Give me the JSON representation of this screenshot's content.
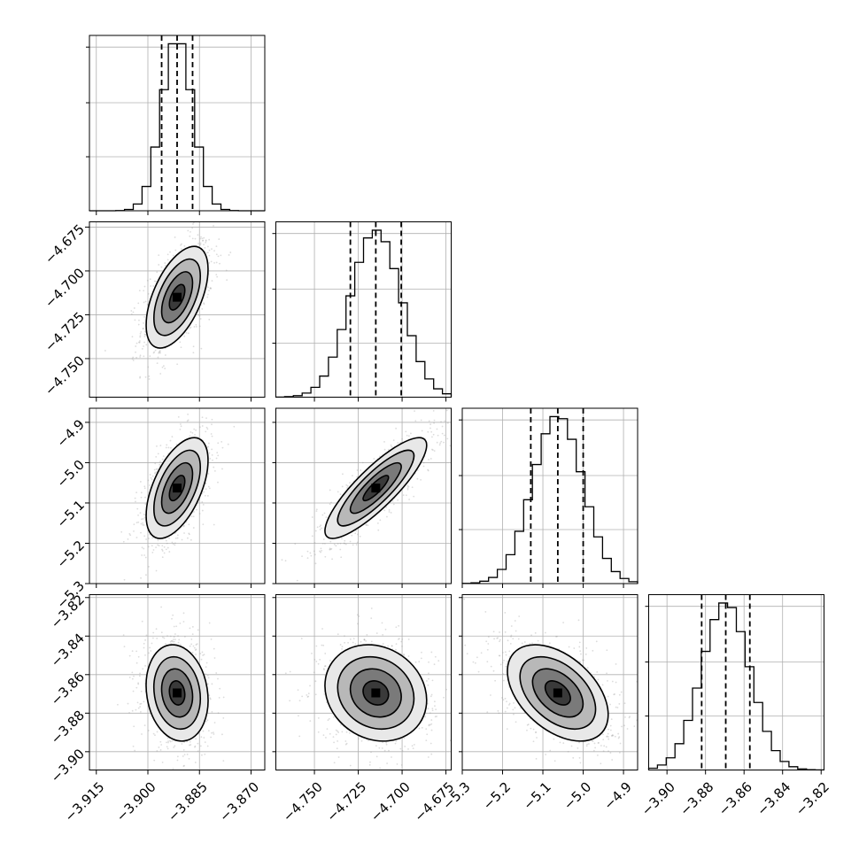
{
  "chart_data": {
    "type": "corner",
    "parameters": [
      {
        "index": 0,
        "mean": -3.8915,
        "sigma": 0.0045,
        "q16": -3.896,
        "q50": -3.8915,
        "q84": -3.887,
        "range": [
          -3.917,
          -3.866
        ],
        "ticks": [
          -3.915,
          -3.9,
          -3.885,
          -3.87
        ],
        "tick_labels": [
          "−3.915",
          "−3.900",
          "−3.885",
          "−3.870"
        ]
      },
      {
        "index": 1,
        "mean": -4.715,
        "sigma": 0.0145,
        "q16": -4.7295,
        "q50": -4.715,
        "q84": -4.7005,
        "range": [
          -4.772,
          -4.672
        ],
        "ticks": [
          -4.75,
          -4.725,
          -4.7,
          -4.675
        ],
        "tick_labels": [
          "−4.750",
          "−4.725",
          "−4.700",
          "−4.675"
        ]
      },
      {
        "index": 2,
        "mean": -5.063,
        "sigma": 0.0625,
        "q16": -5.13,
        "q50": -5.063,
        "q84": -5.0,
        "range": [
          -5.3,
          -4.865
        ],
        "ticks": [
          -5.3,
          -5.2,
          -5.1,
          -5.0,
          -4.9
        ],
        "tick_labels": [
          "−5.3",
          "−5.2",
          "−5.1",
          "−5.0",
          "−4.9"
        ]
      },
      {
        "index": 3,
        "mean": -3.8695,
        "sigma": 0.0125,
        "q16": -3.882,
        "q50": -3.8695,
        "q84": -3.857,
        "range": [
          -3.9095,
          -3.8185
        ],
        "ticks": [
          -3.9,
          -3.88,
          -3.86,
          -3.84,
          -3.82
        ],
        "tick_labels": [
          "−3.90",
          "−3.88",
          "−3.86",
          "−3.84",
          "−3.82"
        ]
      }
    ],
    "correlations": {
      "0-1": 0.55,
      "0-2": 0.55,
      "1-2": 0.85,
      "0-3": -0.15,
      "1-3": -0.15,
      "2-3": -0.45
    },
    "hist_bins": 20,
    "grid": true,
    "contour_levels_sigma": [
      0.5,
      1.0,
      1.5,
      2.0
    ]
  }
}
